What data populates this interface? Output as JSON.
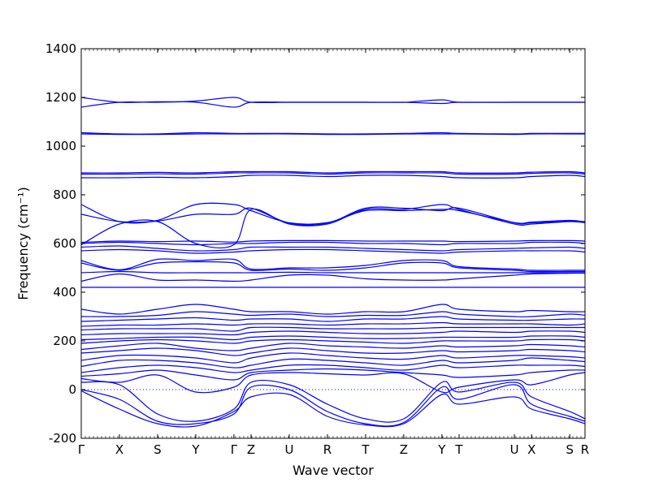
{
  "chart_data": {
    "type": "line",
    "xlabel": "Wave vector",
    "ylabel": "Frequency (cm⁻¹)",
    "ylim": [
      -200,
      1400
    ],
    "yticks": [
      -200,
      0,
      200,
      400,
      600,
      800,
      1000,
      1200,
      1400
    ],
    "x_high_symmetry_points": [
      {
        "label": "Γ",
        "x": 0.0
      },
      {
        "label": "X",
        "x": 1.0
      },
      {
        "label": "S",
        "x": 2.0
      },
      {
        "label": "Y",
        "x": 3.0
      },
      {
        "label": "Γ",
        "x": 4.0
      },
      {
        "label": "Z",
        "x": 4.45
      },
      {
        "label": "U",
        "x": 5.45
      },
      {
        "label": "R",
        "x": 6.45
      },
      {
        "label": "T",
        "x": 7.45
      },
      {
        "label": "Z",
        "x": 8.45
      },
      {
        "label": "Y",
        "x": 9.45
      },
      {
        "label": "T",
        "x": 9.9
      },
      {
        "label": "U",
        "x": 11.35
      },
      {
        "label": "X",
        "x": 11.8
      },
      {
        "label": "S",
        "x": 12.8
      },
      {
        "label": "R",
        "x": 13.2
      }
    ],
    "xlim": [
      0,
      13.2
    ],
    "zero_line": 0,
    "line_color": "#0000ff",
    "zero_line_color": "#0000ff",
    "bands": [
      [
        -5,
        -80,
        -140,
        -150,
        -90,
        -30,
        -20,
        -110,
        -145,
        -140,
        -20,
        -60,
        -30,
        -80,
        -120,
        -140
      ],
      [
        0,
        -40,
        -130,
        -140,
        -100,
        10,
        0,
        -90,
        -140,
        -135,
        10,
        -40,
        20,
        -60,
        -110,
        -130
      ],
      [
        30,
        20,
        -100,
        -130,
        -80,
        30,
        20,
        -60,
        -120,
        -120,
        30,
        -10,
        30,
        -30,
        -90,
        -120
      ],
      [
        45,
        30,
        60,
        -10,
        10,
        60,
        70,
        65,
        60,
        65,
        -10,
        10,
        40,
        20,
        60,
        70
      ],
      [
        55,
        65,
        80,
        60,
        40,
        70,
        80,
        85,
        80,
        70,
        60,
        50,
        60,
        70,
        80,
        80
      ],
      [
        70,
        90,
        100,
        90,
        70,
        80,
        100,
        100,
        90,
        80,
        100,
        90,
        100,
        100,
        100,
        95
      ],
      [
        95,
        120,
        120,
        110,
        90,
        100,
        125,
        120,
        110,
        100,
        120,
        110,
        120,
        130,
        120,
        115
      ],
      [
        120,
        140,
        140,
        130,
        110,
        130,
        150,
        140,
        130,
        125,
        140,
        130,
        140,
        140,
        135,
        130
      ],
      [
        150,
        160,
        170,
        160,
        140,
        150,
        170,
        160,
        150,
        150,
        160,
        155,
        160,
        165,
        160,
        155
      ],
      [
        165,
        180,
        190,
        170,
        160,
        170,
        190,
        180,
        175,
        170,
        180,
        175,
        180,
        185,
        180,
        175
      ],
      [
        190,
        200,
        205,
        200,
        190,
        200,
        205,
        200,
        195,
        190,
        200,
        200,
        200,
        205,
        205,
        200
      ],
      [
        205,
        210,
        215,
        215,
        205,
        215,
        220,
        215,
        210,
        210,
        215,
        215,
        215,
        220,
        220,
        215
      ],
      [
        225,
        230,
        230,
        230,
        225,
        235,
        240,
        235,
        230,
        230,
        235,
        240,
        235,
        240,
        240,
        235
      ],
      [
        245,
        250,
        250,
        250,
        240,
        255,
        255,
        250,
        250,
        250,
        255,
        255,
        255,
        255,
        255,
        255
      ],
      [
        260,
        265,
        265,
        270,
        265,
        270,
        270,
        265,
        270,
        270,
        275,
        270,
        270,
        270,
        265,
        270
      ],
      [
        280,
        285,
        290,
        295,
        285,
        290,
        290,
        280,
        290,
        290,
        300,
        290,
        285,
        285,
        290,
        290
      ],
      [
        300,
        300,
        305,
        320,
        310,
        305,
        310,
        300,
        305,
        305,
        320,
        310,
        300,
        300,
        310,
        305
      ],
      [
        330,
        310,
        330,
        350,
        330,
        320,
        320,
        310,
        320,
        320,
        350,
        330,
        320,
        325,
        320,
        320
      ],
      [
        420,
        420,
        420,
        420,
        420,
        420,
        420,
        420,
        420,
        420,
        420,
        420,
        420,
        420,
        420,
        420
      ],
      [
        445,
        475,
        450,
        450,
        445,
        450,
        470,
        470,
        455,
        450,
        450,
        455,
        470,
        475,
        478,
        478
      ],
      [
        480,
        485,
        480,
        480,
        480,
        480,
        482,
        480,
        480,
        480,
        480,
        480,
        480,
        480,
        480,
        480
      ],
      [
        520,
        490,
        520,
        525,
        520,
        490,
        495,
        490,
        500,
        520,
        520,
        500,
        490,
        485,
        485,
        485
      ],
      [
        530,
        492,
        535,
        530,
        535,
        495,
        500,
        500,
        510,
        530,
        530,
        505,
        495,
        490,
        490,
        490
      ],
      [
        570,
        575,
        570,
        560,
        565,
        570,
        575,
        575,
        570,
        565,
        560,
        565,
        570,
        570,
        570,
        565
      ],
      [
        585,
        590,
        580,
        570,
        575,
        585,
        585,
        585,
        580,
        575,
        570,
        575,
        580,
        582,
        585,
        580
      ],
      [
        600,
        605,
        600,
        595,
        600,
        600,
        605,
        605,
        600,
        600,
        595,
        600,
        600,
        605,
        605,
        600
      ],
      [
        605,
        610,
        608,
        610,
        606,
        610,
        612,
        612,
        610,
        610,
        610,
        608,
        610,
        612,
        612,
        610
      ],
      [
        595,
        680,
        690,
        600,
        595,
        740,
        680,
        680,
        740,
        740,
        760,
        740,
        680,
        680,
        690,
        685
      ],
      [
        720,
        690,
        692,
        720,
        720,
        745,
        684,
        684,
        745,
        745,
        735,
        745,
        685,
        685,
        692,
        690
      ],
      [
        760,
        690,
        695,
        760,
        760,
        735,
        685,
        686,
        735,
        735,
        740,
        735,
        686,
        688,
        695,
        688
      ],
      [
        870,
        870,
        872,
        870,
        875,
        880,
        880,
        875,
        880,
        880,
        875,
        870,
        870,
        875,
        880,
        875
      ],
      [
        885,
        885,
        886,
        885,
        890,
        890,
        890,
        885,
        890,
        890,
        890,
        885,
        885,
        888,
        890,
        885
      ],
      [
        890,
        890,
        892,
        890,
        895,
        895,
        895,
        890,
        895,
        895,
        895,
        890,
        890,
        893,
        895,
        890
      ],
      [
        1050,
        1048,
        1048,
        1050,
        1050,
        1050,
        1050,
        1048,
        1048,
        1050,
        1050,
        1050,
        1048,
        1050,
        1050,
        1050
      ],
      [
        1055,
        1050,
        1050,
        1055,
        1052,
        1052,
        1052,
        1050,
        1050,
        1052,
        1055,
        1052,
        1050,
        1052,
        1052,
        1052
      ],
      [
        1160,
        1180,
        1180,
        1185,
        1200,
        1180,
        1180,
        1180,
        1180,
        1180,
        1190,
        1180,
        1180,
        1180,
        1180,
        1180
      ],
      [
        1200,
        1180,
        1182,
        1180,
        1160,
        1180,
        1180,
        1180,
        1180,
        1180,
        1175,
        1180,
        1180,
        1180,
        1180,
        1180
      ]
    ]
  }
}
